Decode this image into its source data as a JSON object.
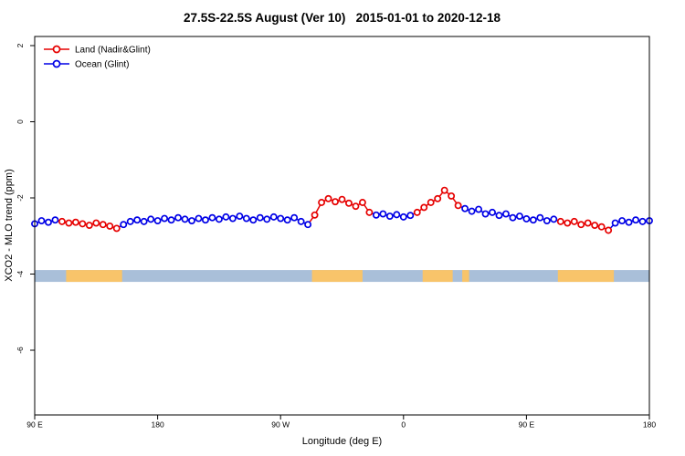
{
  "title": "27.5S-22.5S August (Ver 10)   2015-01-01 to 2020-12-18",
  "axes": {
    "x_label": "Longitude (deg E)",
    "y_label": "XCO2 - MLO trend (ppm)",
    "x_ticks": [
      {
        "deg": 0,
        "label": "90 E"
      },
      {
        "deg": 90,
        "label": "180"
      },
      {
        "deg": 180,
        "label": "90 W"
      },
      {
        "deg": 270,
        "label": "0"
      },
      {
        "deg": 360,
        "label": "90 E"
      },
      {
        "deg": 450,
        "label": "180"
      }
    ],
    "y_ticks": [
      {
        "value": 2,
        "label": "2"
      },
      {
        "value": 0,
        "label": "0"
      },
      {
        "value": -2,
        "label": "-2"
      },
      {
        "value": -4,
        "label": "-4"
      },
      {
        "value": -6,
        "label": "-6"
      }
    ]
  },
  "legend": {
    "items": [
      {
        "label": "Land (Nadir&Glint)",
        "series": "land"
      },
      {
        "label": "Ocean (Glint)",
        "series": "ocean"
      }
    ]
  },
  "chart_data": {
    "type": "line",
    "note": "longitude axis spans 450 deg starting at 90E and wrapping past 180 back to 180; points every 5 deg; open circles with connecting lines; values are XCO2 minus MLO trend in ppm",
    "x_start_deg": 0,
    "x_step_deg": 5,
    "series_colors": {
      "land": "#e60000",
      "ocean": "#0000e6"
    },
    "values": [
      -2.68,
      -2.6,
      -2.64,
      -2.58,
      -2.62,
      -2.66,
      -2.64,
      -2.68,
      -2.72,
      -2.66,
      -2.7,
      -2.74,
      -2.8,
      -2.7,
      -2.62,
      -2.58,
      -2.62,
      -2.56,
      -2.6,
      -2.54,
      -2.58,
      -2.52,
      -2.56,
      -2.6,
      -2.54,
      -2.58,
      -2.52,
      -2.56,
      -2.5,
      -2.54,
      -2.48,
      -2.54,
      -2.58,
      -2.52,
      -2.56,
      -2.5,
      -2.54,
      -2.58,
      -2.52,
      -2.62,
      -2.7,
      -2.45,
      -2.12,
      -2.02,
      -2.1,
      -2.04,
      -2.14,
      -2.22,
      -2.12,
      -2.38,
      -2.45,
      -2.42,
      -2.48,
      -2.44,
      -2.5,
      -2.46,
      -2.38,
      -2.25,
      -2.12,
      -2.02,
      -1.8,
      -1.95,
      -2.2,
      -2.28,
      -2.35,
      -2.3,
      -2.42,
      -2.38,
      -2.46,
      -2.42,
      -2.52,
      -2.48,
      -2.55,
      -2.58,
      -2.52,
      -2.6,
      -2.56,
      -2.62,
      -2.66,
      -2.62,
      -2.7,
      -2.66,
      -2.72,
      -2.76,
      -2.85,
      -2.66,
      -2.6,
      -2.64,
      -2.58,
      -2.62,
      -2.6
    ],
    "types": "OOOOLLLLLLLLLOOOOOOOOOOOOOOOOOOOOOOOOOOOOLLLLLLLLLOOOOOOLLLLLLLOOOOOOOOOOOOOOLLLLLLLLOOOOOO",
    "band": {
      "center_value": -4.05,
      "ocean_color": "#a9bfd9",
      "land_color": "#f8c46a",
      "land_segments_deg": [
        [
          23,
          64
        ],
        [
          203,
          240
        ],
        [
          284,
          306
        ],
        [
          313,
          318
        ],
        [
          383,
          424
        ]
      ]
    }
  }
}
